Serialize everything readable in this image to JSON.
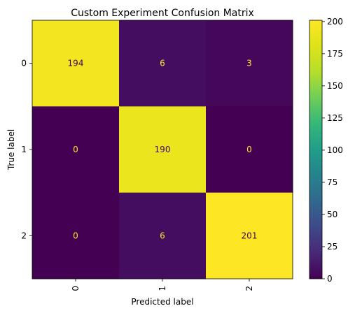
{
  "chart_data": {
    "type": "heatmap",
    "title": "Custom Experiment Confusion Matrix",
    "xlabel": "Predicted label",
    "ylabel": "True label",
    "x_categories": [
      "0",
      "1",
      "2"
    ],
    "y_categories": [
      "0",
      "1",
      "2"
    ],
    "matrix": [
      [
        194,
        6,
        3
      ],
      [
        0,
        190,
        0
      ],
      [
        0,
        6,
        201
      ]
    ],
    "colormap": "viridis",
    "color_range": [
      0,
      201
    ],
    "colorbar_ticks": [
      "0",
      "25",
      "50",
      "75",
      "100",
      "125",
      "150",
      "175",
      "200"
    ],
    "label_color_high": "#440154",
    "label_color_low": "#fde725"
  }
}
